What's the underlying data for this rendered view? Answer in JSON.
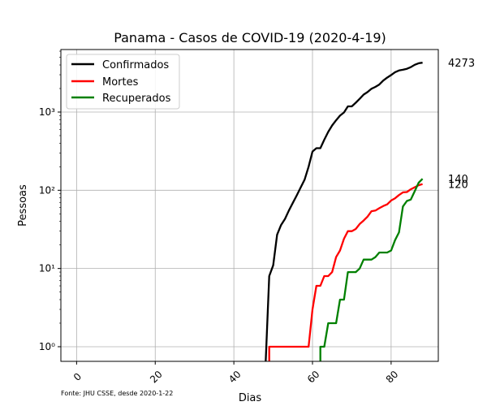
{
  "chart_data": {
    "type": "line",
    "title": "Panama - Casos de COVID-19 (2020-4-19)",
    "xlabel": "Dias",
    "ylabel": "Pessoas",
    "yscale": "log",
    "xlim": [
      -4,
      92
    ],
    "ylim": [
      0.65,
      6300
    ],
    "grid": true,
    "legend_position": "top-left",
    "source_note": "Fonte: JHU CSSE, desde 2020-1-22",
    "x_ticks": [
      0,
      20,
      40,
      60,
      80
    ],
    "x_tick_labels": [
      "0",
      "20",
      "40",
      "60",
      "80"
    ],
    "y_ticks": [
      1,
      10,
      100,
      1000
    ],
    "y_tick_labels": [
      "10⁰",
      "10¹",
      "10²",
      "10³"
    ],
    "series": [
      {
        "name": "Confirmados",
        "color": "#000000",
        "end_label": "4273",
        "points": [
          [
            48,
            0.5
          ],
          [
            49,
            8
          ],
          [
            50,
            11
          ],
          [
            51,
            27
          ],
          [
            52,
            36
          ],
          [
            53,
            43
          ],
          [
            54,
            55
          ],
          [
            55,
            69
          ],
          [
            56,
            86
          ],
          [
            57,
            109
          ],
          [
            58,
            137
          ],
          [
            59,
            200
          ],
          [
            60,
            313
          ],
          [
            61,
            345
          ],
          [
            62,
            345
          ],
          [
            63,
            443
          ],
          [
            64,
            558
          ],
          [
            65,
            674
          ],
          [
            66,
            786
          ],
          [
            67,
            901
          ],
          [
            68,
            989
          ],
          [
            69,
            1181
          ],
          [
            70,
            1181
          ],
          [
            71,
            1317
          ],
          [
            72,
            1475
          ],
          [
            73,
            1673
          ],
          [
            74,
            1801
          ],
          [
            75,
            1988
          ],
          [
            76,
            2100
          ],
          [
            77,
            2249
          ],
          [
            78,
            2528
          ],
          [
            79,
            2752
          ],
          [
            80,
            2974
          ],
          [
            81,
            3234
          ],
          [
            82,
            3400
          ],
          [
            83,
            3472
          ],
          [
            84,
            3574
          ],
          [
            85,
            3751
          ],
          [
            86,
            4016
          ],
          [
            87,
            4210
          ],
          [
            88,
            4273
          ]
        ]
      },
      {
        "name": "Mortes",
        "color": "#ff0000",
        "end_label": "120",
        "points": [
          [
            49,
            0.5
          ],
          [
            49,
            1
          ],
          [
            59,
            1
          ],
          [
            60,
            3
          ],
          [
            61,
            6
          ],
          [
            62,
            6
          ],
          [
            63,
            8
          ],
          [
            64,
            8
          ],
          [
            65,
            9
          ],
          [
            66,
            14
          ],
          [
            67,
            17
          ],
          [
            68,
            24
          ],
          [
            69,
            30
          ],
          [
            70,
            30
          ],
          [
            71,
            32
          ],
          [
            72,
            37
          ],
          [
            73,
            41
          ],
          [
            74,
            46
          ],
          [
            75,
            54
          ],
          [
            76,
            55
          ],
          [
            77,
            59
          ],
          [
            78,
            63
          ],
          [
            79,
            66
          ],
          [
            80,
            74
          ],
          [
            81,
            79
          ],
          [
            82,
            87
          ],
          [
            83,
            94
          ],
          [
            84,
            95
          ],
          [
            85,
            103
          ],
          [
            86,
            109
          ],
          [
            87,
            116
          ],
          [
            88,
            120
          ]
        ]
      },
      {
        "name": "Recuperados",
        "color": "#008000",
        "end_label": "140",
        "points": [
          [
            62,
            0.5
          ],
          [
            62,
            1
          ],
          [
            63,
            1
          ],
          [
            64,
            2
          ],
          [
            65,
            2
          ],
          [
            66,
            2
          ],
          [
            67,
            4
          ],
          [
            68,
            4
          ],
          [
            69,
            9
          ],
          [
            70,
            9
          ],
          [
            71,
            9
          ],
          [
            72,
            10
          ],
          [
            73,
            13
          ],
          [
            74,
            13
          ],
          [
            75,
            13
          ],
          [
            76,
            14
          ],
          [
            77,
            16
          ],
          [
            78,
            16
          ],
          [
            79,
            16
          ],
          [
            80,
            17
          ],
          [
            81,
            23
          ],
          [
            82,
            29
          ],
          [
            83,
            62
          ],
          [
            84,
            73
          ],
          [
            85,
            76
          ],
          [
            86,
            97
          ],
          [
            87,
            125
          ],
          [
            88,
            140
          ]
        ]
      }
    ]
  }
}
